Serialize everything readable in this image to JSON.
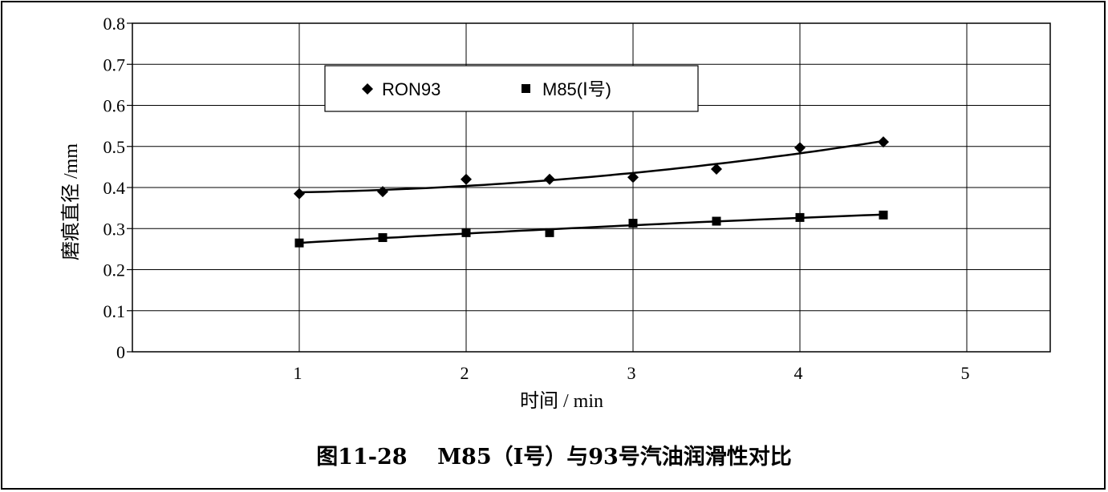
{
  "chart_data": {
    "type": "scatter",
    "xlim": [
      0,
      5.5
    ],
    "ylim": [
      0,
      0.8
    ],
    "x_ticks": [
      "1",
      "2",
      "3",
      "4",
      "5"
    ],
    "y_ticks": [
      "0",
      "0.1",
      "0.2",
      "0.3",
      "0.4",
      "0.5",
      "0.6",
      "0.7",
      "0.8"
    ],
    "xlabel": "时间 / min",
    "ylabel": "磨痕直径 /mm",
    "grid": true,
    "legend_position": "top-left",
    "trendlines": true,
    "series": [
      {
        "name": "RON93",
        "marker": "diamond",
        "x": [
          1,
          1.5,
          2,
          2.5,
          3,
          3.5,
          4,
          4.5
        ],
        "y": [
          0.385,
          0.39,
          0.42,
          0.42,
          0.425,
          0.445,
          0.497,
          0.511
        ]
      },
      {
        "name": "M85(Ⅰ号)",
        "marker": "square",
        "x": [
          1,
          1.5,
          2,
          2.5,
          3,
          3.5,
          4,
          4.5
        ],
        "y": [
          0.265,
          0.278,
          0.29,
          0.29,
          0.313,
          0.318,
          0.327,
          0.333
        ]
      }
    ]
  },
  "caption": "图11-28    M85（Ⅰ号）与93号汽油润滑性对比",
  "colors": {
    "marker": "#000000",
    "grid": "#000000",
    "background": "#ffffff"
  }
}
